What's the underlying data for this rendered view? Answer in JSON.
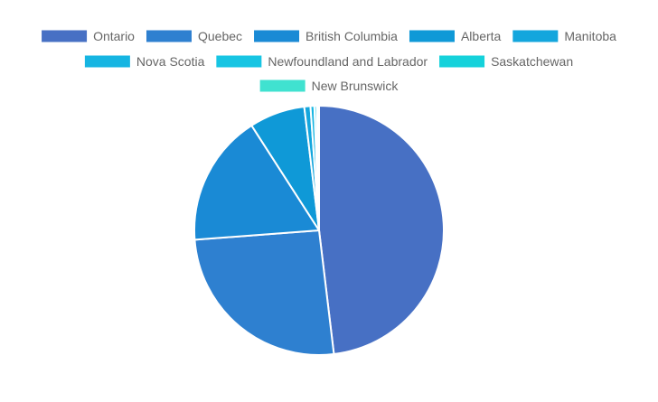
{
  "chart_data": {
    "type": "pie",
    "title": "",
    "legend_position": "top",
    "categories": [
      "Ontario",
      "Quebec",
      "British Columbia",
      "Alberta",
      "Manitoba",
      "Nova Scotia",
      "Newfoundland and Labrador",
      "Saskatchewan",
      "New Brunswick"
    ],
    "values": [
      48.1,
      25.7,
      17.1,
      7.2,
      0.8,
      0.5,
      0.3,
      0.2,
      0.1
    ],
    "colors": [
      "#4770c4",
      "#2e80d0",
      "#1a8ad5",
      "#0f99d7",
      "#13a6dd",
      "#16b5e2",
      "#17c5e3",
      "#15d2db",
      "#40e2d0"
    ],
    "slice_border_color": "#ffffff",
    "legend_text_color": "#666666"
  }
}
